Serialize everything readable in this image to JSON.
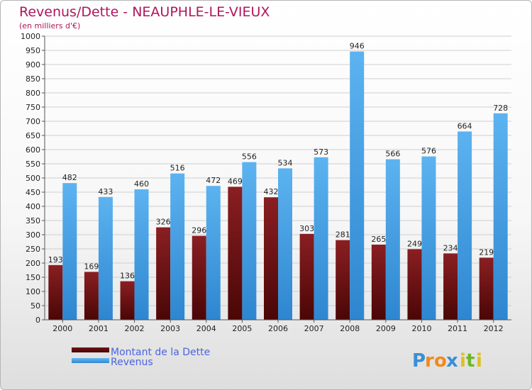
{
  "title": "Revenus/Dette - NEAUPHLE-LE-VIEUX",
  "subtitle": "(en milliers d'€)",
  "legend": [
    {
      "label": "Montant de la Dette",
      "color": "#6b0f0f"
    },
    {
      "label": "Revenus",
      "color": "#4aa3e8"
    }
  ],
  "logo": "Proxiti",
  "chart_data": {
    "type": "bar",
    "categories": [
      "2000",
      "2001",
      "2002",
      "2003",
      "2004",
      "2005",
      "2006",
      "2007",
      "2008",
      "2009",
      "2010",
      "2011",
      "2012"
    ],
    "series": [
      {
        "name": "Montant de la Dette",
        "values": [
          193,
          169,
          136,
          326,
          296,
          469,
          432,
          303,
          281,
          265,
          249,
          234,
          219
        ]
      },
      {
        "name": "Revenus",
        "values": [
          482,
          433,
          460,
          516,
          472,
          556,
          534,
          573,
          946,
          566,
          576,
          664,
          728
        ]
      }
    ],
    "ylim": [
      0,
      1000
    ],
    "yticks": [
      0,
      50,
      100,
      150,
      200,
      250,
      300,
      350,
      400,
      450,
      500,
      550,
      600,
      650,
      700,
      750,
      800,
      850,
      900,
      950,
      1000
    ],
    "grid": true
  }
}
